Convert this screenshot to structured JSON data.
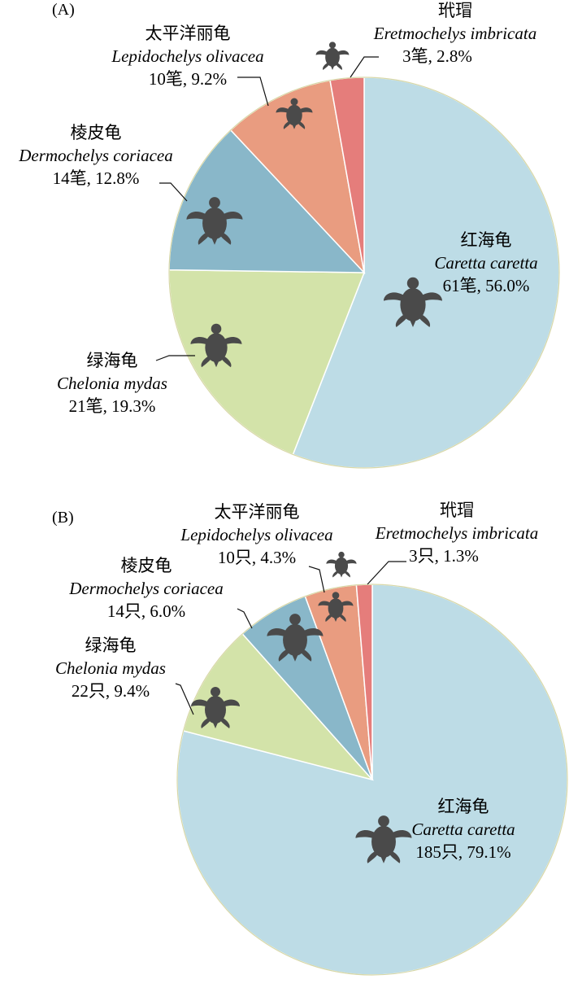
{
  "chart_data": [
    {
      "type": "pie",
      "panel_label": "(A)",
      "slices": [
        {
          "cn": "红海龟",
          "latin": "Caretta caretta",
          "count": 61,
          "unit": "笔",
          "percent": 56.0,
          "value_text": "61笔, 56.0%",
          "color": "#bddce6"
        },
        {
          "cn": "绿海龟",
          "latin": "Chelonia mydas",
          "count": 21,
          "unit": "笔",
          "percent": 19.3,
          "value_text": "21笔, 19.3%",
          "color": "#d3e3a9"
        },
        {
          "cn": "棱皮龟",
          "latin": "Dermochelys coriacea",
          "count": 14,
          "unit": "笔",
          "percent": 12.8,
          "value_text": "14笔, 12.8%",
          "color": "#89b7c9"
        },
        {
          "cn": "太平洋丽龟",
          "latin": "Lepidochelys olivacea",
          "count": 10,
          "unit": "笔",
          "percent": 9.2,
          "value_text": "10笔, 9.2%",
          "color": "#e99c80"
        },
        {
          "cn": "玳瑁",
          "latin": "Eretmochelys imbricata",
          "count": 3,
          "unit": "笔",
          "percent": 2.8,
          "value_text": "3笔, 2.8%",
          "color": "#e57d7b"
        }
      ]
    },
    {
      "type": "pie",
      "panel_label": "(B)",
      "slices": [
        {
          "cn": "红海龟",
          "latin": "Caretta caretta",
          "count": 185,
          "unit": "只",
          "percent": 79.1,
          "value_text": "185只, 79.1%",
          "color": "#bddce6"
        },
        {
          "cn": "绿海龟",
          "latin": "Chelonia mydas",
          "count": 22,
          "unit": "只",
          "percent": 9.4,
          "value_text": "22只, 9.4%",
          "color": "#d3e3a9"
        },
        {
          "cn": "棱皮龟",
          "latin": "Dermochelys coriacea",
          "count": 14,
          "unit": "只",
          "percent": 6.0,
          "value_text": "14只, 6.0%",
          "color": "#89b7c9"
        },
        {
          "cn": "太平洋丽龟",
          "latin": "Lepidochelys olivacea",
          "count": 10,
          "unit": "只",
          "percent": 4.3,
          "value_text": "10只, 4.3%",
          "color": "#e99c80"
        },
        {
          "cn": "玳瑁",
          "latin": "Eretmochelys imbricata",
          "count": 3,
          "unit": "只",
          "percent": 1.3,
          "value_text": "3只, 1.3%",
          "color": "#e57d7b"
        }
      ]
    }
  ],
  "icons": {
    "slice_icon": "sea-turtle-icon",
    "icon_color": "#4a4a4a"
  }
}
